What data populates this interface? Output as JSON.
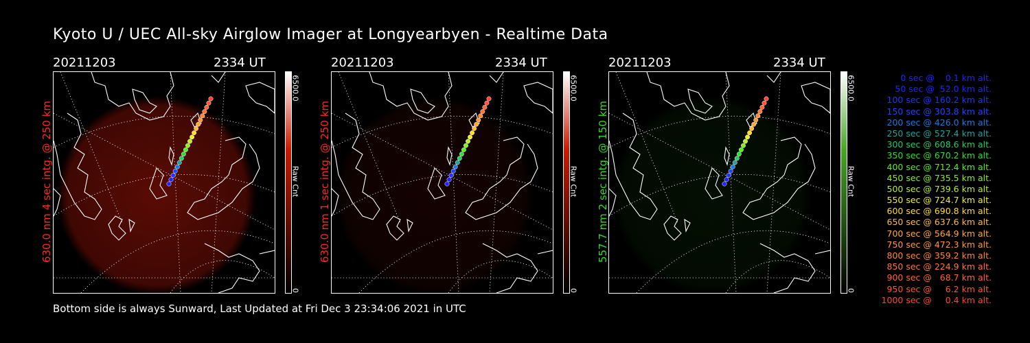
{
  "title": "Kyoto U / UEC All-sky Airglow Imager at Longyearbyen - Realtime Data",
  "footer": "Bottom side is always Sunward, Last Updated at Fri Dec  3 23:34:06 2021 in UTC",
  "panels": [
    {
      "date": "20211203",
      "time": "2334 UT",
      "side_label": "630.0 nm 4 sec intg. @ 250 km",
      "label_color": "#ff2a1a",
      "cbar_top": "6500.0",
      "cbar_mid": "Raw Cnt",
      "cbar_bottom": "0",
      "cbar_color": "#cc1a00",
      "glow": "#6a0d05",
      "glow_strength": 0.85
    },
    {
      "date": "20211203",
      "time": "2334 UT",
      "side_label": "630.0 nm 1 sec intg. @ 250 km",
      "label_color": "#ff2a1a",
      "cbar_top": "6500.0",
      "cbar_mid": "Raw Cnt",
      "cbar_bottom": "0",
      "cbar_color": "#cc1a00",
      "glow": "#3a0704",
      "glow_strength": 0.35
    },
    {
      "date": "20211203",
      "time": "2334 UT",
      "side_label": "557.7 nm 2 sec intg. @ 150 km",
      "label_color": "#33dd22",
      "cbar_top": "6500.0",
      "cbar_mid": "Raw Cnt",
      "cbar_bottom": "0",
      "cbar_color": "#44aa22",
      "glow": "#0b2a08",
      "glow_strength": 0.35
    }
  ],
  "legend": [
    {
      "text": "   0 sec @    0.1 km alt.",
      "color": "#2222ff"
    },
    {
      "text": "  50 sec @  52.0 km alt.",
      "color": "#2222ff"
    },
    {
      "text": " 100 sec @ 160.2 km alt.",
      "color": "#2233ff"
    },
    {
      "text": " 150 sec @ 303.8 km alt.",
      "color": "#2244ff"
    },
    {
      "text": " 200 sec @ 426.0 km alt.",
      "color": "#2277dd"
    },
    {
      "text": " 250 sec @ 527.4 km alt.",
      "color": "#22a0a0"
    },
    {
      "text": " 300 sec @ 608.6 km alt.",
      "color": "#22cc66"
    },
    {
      "text": " 350 sec @ 670.2 km alt.",
      "color": "#33dd33"
    },
    {
      "text": " 400 sec @ 712.4 km alt.",
      "color": "#55ee22"
    },
    {
      "text": " 450 sec @ 735.5 km alt.",
      "color": "#88ee22"
    },
    {
      "text": " 500 sec @ 739.6 km alt.",
      "color": "#bbee22"
    },
    {
      "text": " 550 sec @ 724.7 km alt.",
      "color": "#eeee22"
    },
    {
      "text": " 600 sec @ 690.8 km alt.",
      "color": "#ffdd22"
    },
    {
      "text": " 650 sec @ 637.6 km alt.",
      "color": "#ffbb33"
    },
    {
      "text": " 700 sec @ 564.9 km alt.",
      "color": "#ffaa33"
    },
    {
      "text": " 750 sec @ 472.3 km alt.",
      "color": "#ff9933"
    },
    {
      "text": " 800 sec @ 359.2 km alt.",
      "color": "#ff8833"
    },
    {
      "text": " 850 sec @ 224.9 km alt.",
      "color": "#ff7733"
    },
    {
      "text": " 900 sec @   68.7 km alt.",
      "color": "#ff6633"
    },
    {
      "text": " 950 sec @     6.2 km alt.",
      "color": "#ff5533"
    },
    {
      "text": "1000 sec @     0.4 km alt.",
      "color": "#ff4433"
    }
  ]
}
